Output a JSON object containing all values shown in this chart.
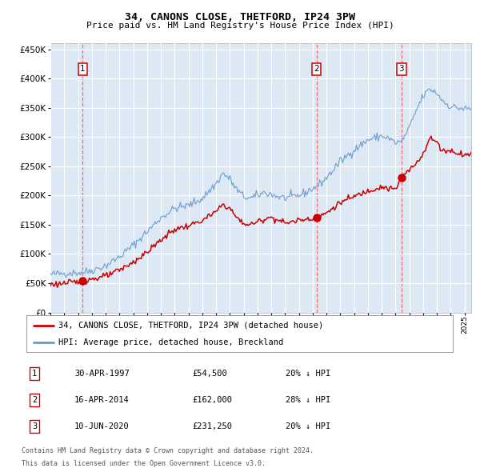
{
  "title": "34, CANONS CLOSE, THETFORD, IP24 3PW",
  "subtitle": "Price paid vs. HM Land Registry's House Price Index (HPI)",
  "legend_line1": "34, CANONS CLOSE, THETFORD, IP24 3PW (detached house)",
  "legend_line2": "HPI: Average price, detached house, Breckland",
  "transactions": [
    {
      "num": 1,
      "date": "30-APR-1997",
      "price": 54500,
      "pct": "20%",
      "x_year": 1997.33
    },
    {
      "num": 2,
      "date": "16-APR-2014",
      "price": 162000,
      "pct": "28%",
      "x_year": 2014.29
    },
    {
      "num": 3,
      "date": "10-JUN-2020",
      "price": 231250,
      "pct": "20%",
      "x_year": 2020.44
    }
  ],
  "footer1": "Contains HM Land Registry data © Crown copyright and database right 2024.",
  "footer2": "This data is licensed under the Open Government Licence v3.0.",
  "plot_bg": "#dde8f5",
  "grid_color": "#ffffff",
  "red_line_color": "#cc0000",
  "blue_line_color": "#6699cc",
  "dashed_color": "#ff5555",
  "marker_color": "#cc0000",
  "ylim": [
    0,
    460000
  ],
  "xlim_start": 1995.0,
  "xlim_end": 2025.5,
  "hpi_anchors": {
    "1995.0": 65000,
    "1996.0": 67000,
    "1997.33": 68500,
    "1998.0": 72000,
    "1999.0": 80000,
    "2000.0": 95000,
    "2001.0": 115000,
    "2002.0": 138000,
    "2003.0": 162000,
    "2004.0": 178000,
    "2005.0": 183000,
    "2006.0": 195000,
    "2007.0": 220000,
    "2007.5": 238000,
    "2008.0": 228000,
    "2008.5": 210000,
    "2009.0": 198000,
    "2009.5": 195000,
    "2010.0": 200000,
    "2010.5": 205000,
    "2011.0": 202000,
    "2011.5": 198000,
    "2012.0": 196000,
    "2012.5": 197000,
    "2013.0": 200000,
    "2013.5": 205000,
    "2014.0": 212000,
    "2014.29": 215000,
    "2015.0": 230000,
    "2016.0": 258000,
    "2017.0": 278000,
    "2018.0": 295000,
    "2019.0": 302000,
    "2019.5": 298000,
    "2020.0": 290000,
    "2020.44": 292000,
    "2021.0": 315000,
    "2021.5": 345000,
    "2022.0": 370000,
    "2022.5": 382000,
    "2023.0": 375000,
    "2023.5": 360000,
    "2024.0": 352000,
    "2024.5": 350000,
    "2025.0": 348000
  },
  "red_anchors": {
    "1995.0": 48000,
    "1996.0": 50000,
    "1997.0": 52000,
    "1997.33": 54500,
    "1998.0": 57000,
    "1999.0": 62000,
    "2000.0": 72000,
    "2001.0": 86000,
    "2002.0": 103000,
    "2003.0": 124000,
    "2004.0": 142000,
    "2005.0": 148000,
    "2006.0": 157000,
    "2007.0": 172000,
    "2007.5": 185000,
    "2008.0": 178000,
    "2008.5": 162000,
    "2009.0": 152000,
    "2009.5": 150000,
    "2010.0": 155000,
    "2010.5": 160000,
    "2011.0": 163000,
    "2011.5": 158000,
    "2012.0": 153000,
    "2012.5": 155000,
    "2013.0": 158000,
    "2013.5": 160000,
    "2014.0": 161000,
    "2014.29": 162000,
    "2015.0": 170000,
    "2016.0": 188000,
    "2017.0": 198000,
    "2018.0": 208000,
    "2019.0": 215000,
    "2019.5": 212000,
    "2020.0": 210000,
    "2020.44": 231250,
    "2021.0": 243000,
    "2021.5": 255000,
    "2022.0": 272000,
    "2022.5": 298000,
    "2023.0": 292000,
    "2023.3": 278000,
    "2024.0": 276000,
    "2024.5": 273000,
    "2025.0": 270000
  }
}
